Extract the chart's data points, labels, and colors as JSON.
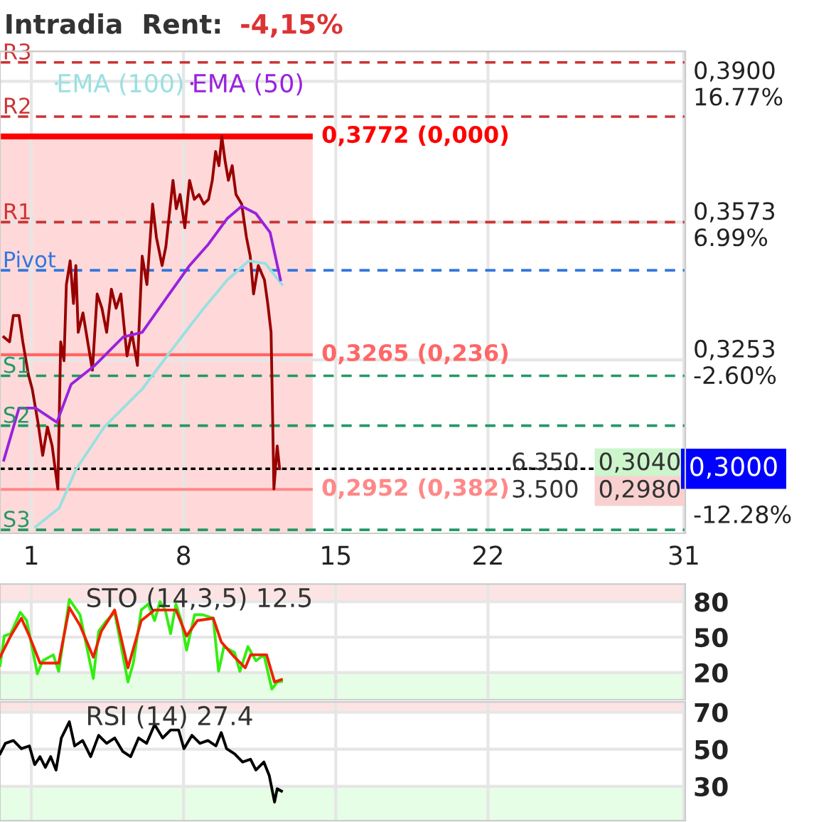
{
  "chart_data": [
    {
      "type": "line",
      "title": "Intradia  Rent:",
      "subtitle": "-4,15%",
      "xlim": [
        -0.44,
        31.07
      ],
      "ylim": [
        0.285,
        0.397
      ],
      "xticks": [
        1,
        8,
        15,
        22,
        31
      ],
      "yticks": [
        {
          "value": 0.39,
          "label": "0,3900"
        },
        {
          "value": 0.3573,
          "label": "0,3573"
        },
        {
          "value": 0.3253,
          "label": "0,3253"
        }
      ],
      "y2lim": [
        -14.67,
        18.86
      ],
      "y2ticks": [
        {
          "value": 16.77,
          "label": "16.77%"
        },
        {
          "value": 6.99,
          "label": "6.99%"
        },
        {
          "value": -2.6,
          "label": "-2.60%"
        },
        {
          "value": -12.28,
          "label": "-12.28%"
        }
      ],
      "grid": true,
      "legend": "top left",
      "marker": "none",
      "line_style": "solid",
      "series": [
        {
          "color": "#990000",
          "x": [
            -0.264,
            0.0,
            0.172,
            0.433,
            0.608,
            0.869,
            1.043,
            1.305,
            1.523,
            1.741,
            1.958,
            2.22,
            2.351,
            2.503,
            2.612,
            2.786,
            2.939,
            3.048,
            3.157,
            3.375,
            3.592,
            3.81,
            4.028,
            4.246,
            4.464,
            4.682,
            4.899,
            5.117,
            5.4,
            5.618,
            5.88,
            6.098,
            6.316,
            6.577,
            6.751,
            7.013,
            7.187,
            7.514,
            7.666,
            7.841,
            8.059,
            8.276,
            8.494,
            8.712,
            8.93,
            9.148,
            9.322,
            9.475,
            9.627,
            9.758,
            9.91,
            10.063,
            10.237,
            10.411,
            10.673,
            10.891,
            11.065,
            11.218,
            11.435,
            11.719,
            11.871,
            12.024,
            12.089,
            12.154,
            12.307,
            12.416
          ],
          "values": [
            0.3306,
            0.3295,
            0.3356,
            0.3356,
            0.3295,
            0.3218,
            0.3185,
            0.3108,
            0.3031,
            0.3097,
            0.3053,
            0.2953,
            0.3295,
            0.3251,
            0.3428,
            0.3483,
            0.3384,
            0.3472,
            0.3317,
            0.3362,
            0.3295,
            0.3229,
            0.3406,
            0.3373,
            0.3317,
            0.3417,
            0.3373,
            0.3406,
            0.3262,
            0.3317,
            0.324,
            0.3494,
            0.3428,
            0.3615,
            0.3538,
            0.3472,
            0.3516,
            0.367,
            0.3604,
            0.3637,
            0.356,
            0.367,
            0.3626,
            0.3637,
            0.3615,
            0.3626,
            0.367,
            0.3737,
            0.3704,
            0.3772,
            0.3715,
            0.367,
            0.3704,
            0.3637,
            0.3615,
            0.3538,
            0.3494,
            0.3406,
            0.3472,
            0.3439,
            0.3384,
            0.3317,
            0.314,
            0.2953,
            0.3053,
            0.3
          ]
        },
        {
          "name": "EMA (100)",
          "color": "#99e0e0",
          "x": [
            1.196,
            2.285,
            3.048,
            4.355,
            6.098,
            7.405,
            8.93,
            10.019,
            11.0,
            11.762,
            12.525
          ],
          "values": [
            0.2865,
            0.2909,
            0.2998,
            0.3097,
            0.3185,
            0.3273,
            0.3373,
            0.3439,
            0.3483,
            0.3477,
            0.3428
          ]
        },
        {
          "name": "EMA (50)",
          "color": "#9922dd",
          "x": [
            -0.264,
            0.433,
            1.196,
            2.176,
            2.83,
            3.919,
            5.226,
            6.098,
            7.187,
            8.276,
            9.148,
            10.019,
            10.673,
            11.326,
            11.98,
            12.459
          ],
          "values": [
            0.302,
            0.3141,
            0.3141,
            0.3108,
            0.3196,
            0.324,
            0.3306,
            0.3317,
            0.3395,
            0.3472,
            0.3522,
            0.3582,
            0.361,
            0.3593,
            0.3549,
            0.3439
          ]
        }
      ],
      "ref_lines": [
        {
          "axis": "y",
          "value": 0.3944,
          "label": "R3",
          "color": "#cc3333",
          "line_style": "dashed"
        },
        {
          "axis": "y",
          "value": 0.3818,
          "label": "R2",
          "color": "#cc3333",
          "line_style": "dashed"
        },
        {
          "axis": "y",
          "value": 0.3573,
          "label": "R1",
          "color": "#cc3333",
          "line_style": "dashed"
        },
        {
          "axis": "y",
          "value": 0.3461,
          "label": "Pivot",
          "color": "#3377dd",
          "line_style": "dashed"
        },
        {
          "axis": "y",
          "value": 0.3216,
          "label": "S1",
          "color": "#229966",
          "line_style": "dashed"
        },
        {
          "axis": "y",
          "value": 0.31,
          "label": "S2",
          "color": "#229966",
          "line_style": "dashed"
        },
        {
          "axis": "y",
          "value": 0.2858,
          "label": "S3",
          "color": "#229966",
          "line_style": "dashed"
        },
        {
          "axis": "y",
          "value": 0.3772,
          "label": "0,3772 (0,000)",
          "color": "#ff0000",
          "line_style": "solid"
        },
        {
          "axis": "y",
          "value": 0.3265,
          "label": "0,3265 (0,236)",
          "color": "#ff6666",
          "line_style": "solid"
        },
        {
          "axis": "y",
          "value": 0.2952,
          "label": "0,2952 (0,382)",
          "color": "#ff8888",
          "line_style": "solid"
        },
        {
          "axis": "y",
          "value": 0.3,
          "label": "0,3000",
          "color": "#000000",
          "line_style": "dotted"
        }
      ],
      "bands": [
        {
          "axis": "x",
          "from": -0.44,
          "to": 13.94,
          "color": "#ffd9d9"
        }
      ],
      "annotations": [
        "6.350",
        "3.500",
        "0,3040",
        "0,2980"
      ]
    },
    {
      "type": "line",
      "title": "STO (14,3,5) 12.5",
      "xlim": [
        -0.44,
        31.07
      ],
      "ylim": [
        -3,
        95
      ],
      "xticks": [
        {
          "value": 1,
          "label": null
        },
        {
          "value": 8,
          "label": null
        },
        {
          "value": 15,
          "label": null
        },
        {
          "value": 22,
          "label": null
        },
        {
          "value": 31,
          "label": null
        }
      ],
      "yticks": [
        80,
        50,
        20
      ],
      "tick_labels": "y",
      "grid": true,
      "marker": "none",
      "line_style": "solid",
      "bands": [
        {
          "axis": "y",
          "from": 80,
          "to": 95,
          "color": "#fde4e4"
        },
        {
          "axis": "y",
          "from": -3,
          "to": 20,
          "color": "#e6fde6"
        }
      ],
      "series": [
        {
          "color": "#33ee11",
          "x": [
            -0.438,
            -0.242,
            0.052,
            0.493,
            0.788,
            1.278,
            1.523,
            2.013,
            2.258,
            2.748,
            3.239,
            3.851,
            4.096,
            4.464,
            4.832,
            5.444,
            5.69,
            6.057,
            6.376,
            6.67,
            6.915,
            7.16,
            7.405,
            7.65,
            7.895,
            8.14,
            8.508,
            8.876,
            9.366,
            9.611,
            9.856,
            10.346,
            10.592,
            10.959,
            11.327,
            11.694,
            12.062,
            12.307,
            12.503
          ],
          "values": [
            26,
            51,
            53,
            71,
            64,
            19,
            30,
            35,
            21,
            82,
            69,
            15,
            55,
            64,
            71,
            12,
            28,
            73,
            78,
            64,
            80,
            73,
            53,
            78,
            64,
            39,
            69,
            69,
            66,
            21,
            42,
            37,
            21,
            42,
            30,
            35,
            6,
            12,
            12.5
          ]
        },
        {
          "color": "#ee2200",
          "x": [
            -0.438,
            0.052,
            0.542,
            0.91,
            1.4,
            1.89,
            2.258,
            2.748,
            3.239,
            3.851,
            4.219,
            4.832,
            5.444,
            6.057,
            6.67,
            7.16,
            7.65,
            8.14,
            8.631,
            9.366,
            9.734,
            10.346,
            10.836,
            11.081,
            11.817,
            12.184,
            12.503
          ],
          "values": [
            33,
            51,
            66,
            51,
            28,
            28,
            28,
            75,
            60,
            33,
            55,
            73,
            24,
            64,
            73,
            73,
            73,
            51,
            64,
            66,
            46,
            33,
            24,
            35,
            35,
            12,
            14
          ]
        }
      ]
    },
    {
      "type": "line",
      "title": "RSI (14) 27.4",
      "xlim": [
        -0.44,
        31.07
      ],
      "ylim": [
        11.5,
        75.5
      ],
      "xticks": [
        {
          "value": 1,
          "label": null
        },
        {
          "value": 8,
          "label": null
        },
        {
          "value": 15,
          "label": null
        },
        {
          "value": 22,
          "label": null
        },
        {
          "value": 31,
          "label": null
        }
      ],
      "yticks": [
        70,
        50,
        30
      ],
      "tick_labels": "y",
      "grid": true,
      "marker": "none",
      "line_style": "solid",
      "bands": [
        {
          "axis": "y",
          "from": 70,
          "to": 75.5,
          "color": "#fde4e4"
        },
        {
          "axis": "y",
          "from": 11.5,
          "to": 30,
          "color": "#e6fde6"
        }
      ],
      "series": [
        {
          "color": "#000000",
          "x": [
            -0.438,
            -0.193,
            0.175,
            0.542,
            0.91,
            1.155,
            1.4,
            1.645,
            1.89,
            2.136,
            2.381,
            2.748,
            2.993,
            3.361,
            3.729,
            4.096,
            4.464,
            4.832,
            5.199,
            5.567,
            5.935,
            6.302,
            6.67,
            7.038,
            7.405,
            7.773,
            8.018,
            8.386,
            8.753,
            9.121,
            9.488,
            9.733,
            9.979,
            10.346,
            10.714,
            11.081,
            11.327,
            11.694,
            11.939,
            12.184,
            12.307,
            12.503
          ],
          "values": [
            47.5,
            53.2,
            54.7,
            50.3,
            51.8,
            41.7,
            46.0,
            40.2,
            46.0,
            38.8,
            56.1,
            64.8,
            51.8,
            54.7,
            46.0,
            57.5,
            53.2,
            56.1,
            48.9,
            46.0,
            56.1,
            53.2,
            63.3,
            56.1,
            60.4,
            60.4,
            50.3,
            57.5,
            53.2,
            54.7,
            51.8,
            59.0,
            50.3,
            47.5,
            43.1,
            44.6,
            38.8,
            43.1,
            35.9,
            21.5,
            28.7,
            27.4
          ]
        }
      ]
    }
  ]
}
